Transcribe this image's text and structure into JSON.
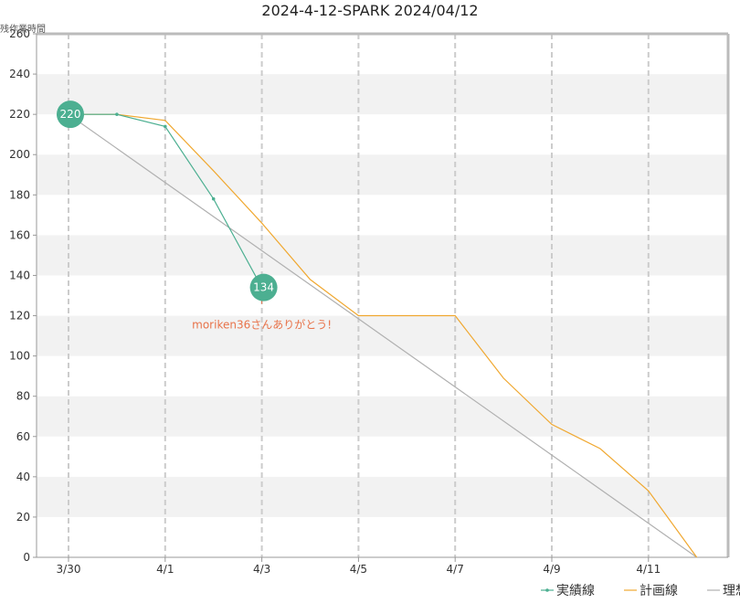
{
  "chart_data": {
    "type": "line",
    "title": "2024-4-12-SPARK 2024/04/12",
    "ylabel": "残作業時間",
    "xlabel": "",
    "ylim": [
      0,
      260
    ],
    "yticks": [
      0,
      20,
      40,
      60,
      80,
      100,
      120,
      140,
      160,
      180,
      200,
      220,
      240,
      260
    ],
    "x_dates": [
      "3/30",
      "3/31",
      "4/1",
      "4/2",
      "4/3",
      "4/4",
      "4/5",
      "4/6",
      "4/7",
      "4/8",
      "4/9",
      "4/10",
      "4/11",
      "4/12"
    ],
    "x_tick_labels": [
      "3/30",
      "4/1",
      "4/3",
      "4/5",
      "4/7",
      "4/9",
      "4/11"
    ],
    "grid": true,
    "legend_position": "bottom-right",
    "series": [
      {
        "name": "実績線",
        "color": "#4caf91",
        "marker": "dot",
        "x": [
          "3/30",
          "3/31",
          "4/1",
          "4/2",
          "4/3"
        ],
        "values": [
          220,
          220,
          214,
          178,
          134
        ]
      },
      {
        "name": "計画線",
        "color": "#f0a830",
        "x": [
          "3/30",
          "3/31",
          "4/1",
          "4/2",
          "4/3",
          "4/4",
          "4/5",
          "4/6",
          "4/7",
          "4/8",
          "4/9",
          "4/10",
          "4/11",
          "4/12"
        ],
        "values": [
          220,
          220,
          217,
          192,
          166,
          138,
          120,
          120,
          120,
          89,
          66,
          54,
          33,
          0
        ]
      },
      {
        "name": "理想線",
        "color": "#b0b0b0",
        "x": [
          "3/30",
          "4/12"
        ],
        "values": [
          220,
          0
        ]
      }
    ],
    "bubbles": [
      {
        "x": "3/30",
        "value": 220,
        "label": "220",
        "color": "#4caf91"
      },
      {
        "x": "4/3",
        "value": 134,
        "label": "134",
        "color": "#4caf91"
      }
    ],
    "annotations": [
      {
        "x": "4/3",
        "value": 134,
        "text": "moriken36さんありがとう!",
        "color": "#e8734a"
      }
    ]
  }
}
